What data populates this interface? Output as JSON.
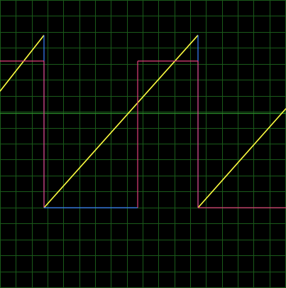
{
  "chart_data": {
    "type": "line",
    "title": "",
    "xlabel": "",
    "ylabel": "",
    "xlim": [
      0,
      403
    ],
    "ylim": [
      -8.12,
      5.23
    ],
    "grid": true,
    "grid_divisions": {
      "x": 18,
      "y": 18
    },
    "center_axis": {
      "y": 0
    },
    "colors": {
      "background": "#000000",
      "grid": "#1a5a1a",
      "center_axis": "#2a8a2a",
      "ramp": "#ffff40",
      "gate_high": "#e0407a",
      "gate_low": "#3a80ff"
    },
    "series": [
      {
        "key": "ramp",
        "points": [
          [
            0,
            1.0
          ],
          [
            62,
            3.6
          ],
          [
            62,
            -4.4
          ],
          [
            279,
            3.6
          ],
          [
            279,
            -4.4
          ],
          [
            403,
            0.2
          ]
        ]
      },
      {
        "key": "gate",
        "points": [
          [
            0,
            2.4
          ],
          [
            56,
            2.4
          ],
          [
            56,
            2.4
          ],
          [
            62,
            2.4
          ],
          [
            62,
            -4.4
          ],
          [
            194,
            -4.4
          ],
          [
            194,
            2.4
          ],
          [
            279,
            2.4
          ],
          [
            279,
            -4.4
          ],
          [
            403,
            -4.4
          ]
        ]
      }
    ]
  }
}
